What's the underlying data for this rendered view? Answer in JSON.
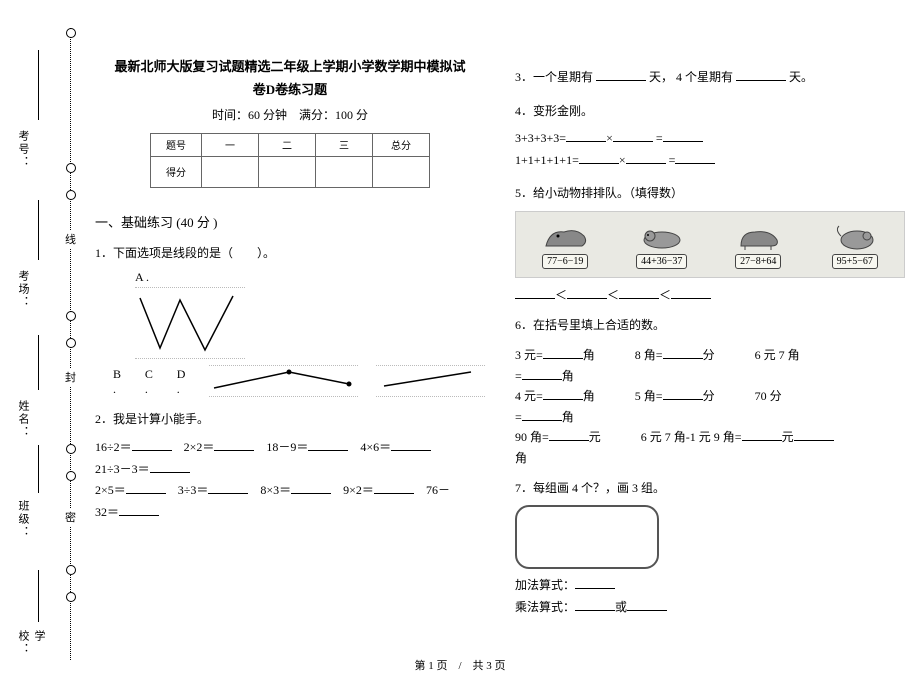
{
  "binding": {
    "labels": [
      "考号：",
      "考场：",
      "姓名：",
      "班级：",
      "学校："
    ],
    "seal_chars": [
      "线",
      "封",
      "密"
    ]
  },
  "header": {
    "title_line1": "最新北师大版复习试题精选二年级上学期小学数学期中模拟试",
    "title_line2": "卷D卷练习题",
    "time_label": "时间：",
    "time_value": "60 分钟",
    "full_label": "满分：",
    "full_value": "100 分"
  },
  "score_table": {
    "headers": [
      "题号",
      "一",
      "二",
      "三",
      "总分"
    ],
    "row_label": "得分"
  },
  "section1": {
    "heading": "一、基础练习  (40 分 )",
    "q1": "1．下面选项是线段的是（　　）。",
    "q1_optA": "A .",
    "q1_optB": "B .",
    "q1_optC": "C .",
    "q1_optD": "D .",
    "q2": "2．我是计算小能手。",
    "q2_lines": [
      "16÷2＝______　2×2＝______　18－9＝______　4×6＝______",
      "21÷3－3＝______",
      "2×5＝______　3÷3＝______　8×3＝______　9×2＝______　76－",
      "32＝______"
    ],
    "q3_a": "3．一个星期有 ",
    "q3_b": "天，  4 个星期有 ",
    "q3_c": "天。",
    "q4": "4．变形金刚。",
    "q4_l1": "3+3+3+3=______×______ =______",
    "q4_l2": "1+1+1+1+1=______×______ =______",
    "q5": "5．给小动物排排队。（填得数）",
    "badges": [
      "77−6−19",
      "44+36−37",
      "27−8+64",
      "95+5−67"
    ],
    "q5_cmp": "______＜______＜______＜______",
    "q6": "6．在括号里填上合适的数。",
    "q6_rows": [
      [
        "3 元=______角",
        "8 角=______分",
        "6 元 7 角"
      ],
      [
        "=______角",
        "",
        ""
      ],
      [
        "4 元=______角",
        "5 角=______分",
        "70 分"
      ],
      [
        "=______角",
        "",
        ""
      ],
      [
        "90 角=______元",
        "6 元 7 角-1 元 9 角=______元______",
        ""
      ],
      [
        "角",
        "",
        ""
      ]
    ],
    "q7": "7．每组画 4 个？，画 3 组。",
    "q7_add": "加法算式：______",
    "q7_mul": "乘法算式：______或______"
  },
  "footer": "第 1 页　/　共 3 页"
}
